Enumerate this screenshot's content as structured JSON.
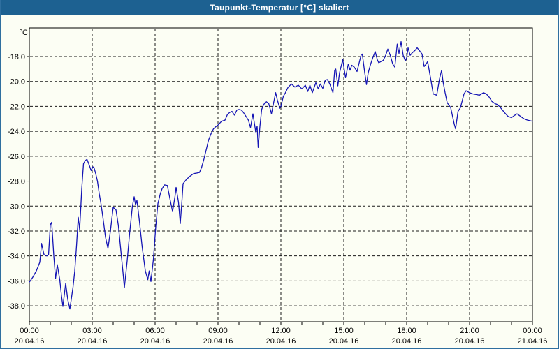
{
  "window": {
    "title": "Taupunkt-Temperatur [°C] skaliert"
  },
  "colors": {
    "titlebar_bg": "#1d6191",
    "titlebar_text": "#ffffff",
    "window_border": "#2f6f9f",
    "background": "#fcfef4",
    "grid": "#1a1a1a",
    "series": "#1414b4"
  },
  "chart_data": {
    "type": "line",
    "title": "Taupunkt-Temperatur [°C] skaliert",
    "xlabel": "",
    "ylabel": "°C",
    "grid": true,
    "legend_position": "none",
    "ylim": [
      -39.3,
      -15.7
    ],
    "xlim_hours": [
      0,
      24
    ],
    "y_tick_values": [
      -18,
      -20,
      -22,
      -24,
      -26,
      -28,
      -30,
      -32,
      -34,
      -36,
      -38
    ],
    "y_tick_labels": [
      "-18,0",
      "-20,0",
      "-22,0",
      "-24,0",
      "-26,0",
      "-28,0",
      "-30,0",
      "-32,0",
      "-34,0",
      "-36,0",
      "-38,0"
    ],
    "x_ticks": [
      {
        "hours": 0,
        "time": "00:00",
        "date": "20.04.16"
      },
      {
        "hours": 3,
        "time": "03:00",
        "date": "20.04.16"
      },
      {
        "hours": 6,
        "time": "06:00",
        "date": "20.04.16"
      },
      {
        "hours": 9,
        "time": "09:00",
        "date": "20.04.16"
      },
      {
        "hours": 12,
        "time": "12:00",
        "date": "20.04.16"
      },
      {
        "hours": 15,
        "time": "15:00",
        "date": "20.04.16"
      },
      {
        "hours": 18,
        "time": "18:00",
        "date": "20.04.16"
      },
      {
        "hours": 21,
        "time": "21:00",
        "date": "20.04.16"
      },
      {
        "hours": 24,
        "time": "00:00",
        "date": "21.04.16"
      }
    ],
    "series": [
      {
        "name": "Taupunkt-Temperatur",
        "color": "#1414b4",
        "points_format": "[minutes_since_00:00, temp_celsius]",
        "points": [
          [
            0,
            -36.1
          ],
          [
            10,
            -35.7
          ],
          [
            20,
            -35.2
          ],
          [
            30,
            -34.5
          ],
          [
            35,
            -33.0
          ],
          [
            42,
            -33.9
          ],
          [
            50,
            -34.0
          ],
          [
            55,
            -33.9
          ],
          [
            60,
            -31.5
          ],
          [
            64,
            -31.3
          ],
          [
            70,
            -34.0
          ],
          [
            75,
            -35.8
          ],
          [
            80,
            -34.7
          ],
          [
            87,
            -35.9
          ],
          [
            92,
            -37.2
          ],
          [
            96,
            -38.05
          ],
          [
            104,
            -36.2
          ],
          [
            110,
            -37.5
          ],
          [
            116,
            -38.25
          ],
          [
            125,
            -36.5
          ],
          [
            130,
            -35.2
          ],
          [
            135,
            -33.2
          ],
          [
            140,
            -30.9
          ],
          [
            144,
            -31.9
          ],
          [
            150,
            -28.6
          ],
          [
            155,
            -26.6
          ],
          [
            160,
            -26.35
          ],
          [
            165,
            -26.25
          ],
          [
            170,
            -26.6
          ],
          [
            177,
            -27.15
          ],
          [
            182,
            -26.85
          ],
          [
            185,
            -26.9
          ],
          [
            190,
            -27.4
          ],
          [
            195,
            -28.0
          ],
          [
            200,
            -29.0
          ],
          [
            205,
            -29.8
          ],
          [
            210,
            -30.8
          ],
          [
            218,
            -32.5
          ],
          [
            225,
            -33.4
          ],
          [
            232,
            -32.0
          ],
          [
            240,
            -30.1
          ],
          [
            248,
            -30.3
          ],
          [
            255,
            -31.6
          ],
          [
            262,
            -33.6
          ],
          [
            268,
            -35.3
          ],
          [
            272,
            -36.55
          ],
          [
            280,
            -34.4
          ],
          [
            287,
            -32.2
          ],
          [
            295,
            -30.0
          ],
          [
            300,
            -29.25
          ],
          [
            304,
            -29.9
          ],
          [
            308,
            -29.55
          ],
          [
            315,
            -31.2
          ],
          [
            323,
            -33.3
          ],
          [
            332,
            -35.2
          ],
          [
            339,
            -35.9
          ],
          [
            343,
            -35.2
          ],
          [
            348,
            -36.05
          ],
          [
            355,
            -34.3
          ],
          [
            362,
            -31.6
          ],
          [
            368,
            -29.8
          ],
          [
            375,
            -29.0
          ],
          [
            380,
            -28.6
          ],
          [
            387,
            -28.3
          ],
          [
            395,
            -28.35
          ],
          [
            403,
            -29.5
          ],
          [
            410,
            -30.45
          ],
          [
            417,
            -29.2
          ],
          [
            420,
            -28.5
          ],
          [
            427,
            -29.7
          ],
          [
            432,
            -31.4
          ],
          [
            437,
            -29.5
          ],
          [
            440,
            -28.2
          ],
          [
            450,
            -27.85
          ],
          [
            460,
            -27.6
          ],
          [
            470,
            -27.4
          ],
          [
            480,
            -27.35
          ],
          [
            487,
            -27.3
          ],
          [
            493,
            -26.9
          ],
          [
            500,
            -26.2
          ],
          [
            507,
            -25.4
          ],
          [
            513,
            -24.7
          ],
          [
            520,
            -24.2
          ],
          [
            527,
            -23.8
          ],
          [
            533,
            -23.65
          ],
          [
            540,
            -23.5
          ],
          [
            550,
            -23.2
          ],
          [
            560,
            -23.1
          ],
          [
            567,
            -22.65
          ],
          [
            573,
            -22.5
          ],
          [
            580,
            -22.4
          ],
          [
            587,
            -22.7
          ],
          [
            594,
            -22.3
          ],
          [
            600,
            -22.25
          ],
          [
            607,
            -22.3
          ],
          [
            613,
            -22.5
          ],
          [
            620,
            -22.8
          ],
          [
            627,
            -23.1
          ],
          [
            633,
            -23.7
          ],
          [
            640,
            -22.6
          ],
          [
            648,
            -24.05
          ],
          [
            652,
            -23.6
          ],
          [
            655,
            -25.3
          ],
          [
            660,
            -23.6
          ],
          [
            665,
            -22.25
          ],
          [
            670,
            -21.9
          ],
          [
            677,
            -21.6
          ],
          [
            685,
            -21.75
          ],
          [
            693,
            -22.6
          ],
          [
            700,
            -21.6
          ],
          [
            705,
            -20.9
          ],
          [
            710,
            -21.5
          ],
          [
            717,
            -22.15
          ],
          [
            720,
            -22.0
          ],
          [
            727,
            -21.2
          ],
          [
            733,
            -20.9
          ],
          [
            740,
            -20.5
          ],
          [
            750,
            -20.2
          ],
          [
            760,
            -20.45
          ],
          [
            770,
            -20.3
          ],
          [
            780,
            -20.6
          ],
          [
            790,
            -20.3
          ],
          [
            797,
            -20.8
          ],
          [
            803,
            -20.3
          ],
          [
            810,
            -20.9
          ],
          [
            820,
            -20.1
          ],
          [
            827,
            -20.6
          ],
          [
            833,
            -20.2
          ],
          [
            840,
            -20.55
          ],
          [
            847,
            -19.9
          ],
          [
            853,
            -19.85
          ],
          [
            860,
            -20.2
          ],
          [
            869,
            -20.9
          ],
          [
            874,
            -19.1
          ],
          [
            877,
            -19.0
          ],
          [
            883,
            -20.35
          ],
          [
            888,
            -19.3
          ],
          [
            897,
            -18.25
          ],
          [
            905,
            -19.7
          ],
          [
            913,
            -18.6
          ],
          [
            918,
            -19.1
          ],
          [
            923,
            -18.7
          ],
          [
            930,
            -18.85
          ],
          [
            938,
            -19.2
          ],
          [
            945,
            -18.4
          ],
          [
            950,
            -17.85
          ],
          [
            953,
            -17.8
          ],
          [
            960,
            -19.3
          ],
          [
            965,
            -20.25
          ],
          [
            970,
            -19.3
          ],
          [
            977,
            -18.6
          ],
          [
            983,
            -18.1
          ],
          [
            990,
            -17.6
          ],
          [
            996,
            -18.25
          ],
          [
            1000,
            -18.5
          ],
          [
            1007,
            -18.4
          ],
          [
            1013,
            -18.3
          ],
          [
            1020,
            -17.9
          ],
          [
            1026,
            -17.4
          ],
          [
            1033,
            -17.9
          ],
          [
            1040,
            -18.6
          ],
          [
            1046,
            -18.85
          ],
          [
            1053,
            -17.0
          ],
          [
            1058,
            -17.75
          ],
          [
            1064,
            -16.8
          ],
          [
            1070,
            -17.9
          ],
          [
            1076,
            -18.35
          ],
          [
            1080,
            -18.1
          ],
          [
            1084,
            -17.3
          ],
          [
            1090,
            -17.9
          ],
          [
            1096,
            -17.7
          ],
          [
            1104,
            -17.5
          ],
          [
            1110,
            -17.3
          ],
          [
            1116,
            -17.5
          ],
          [
            1124,
            -17.8
          ],
          [
            1130,
            -18.8
          ],
          [
            1136,
            -18.6
          ],
          [
            1140,
            -18.4
          ],
          [
            1150,
            -20.0
          ],
          [
            1156,
            -21.0
          ],
          [
            1166,
            -21.1
          ],
          [
            1174,
            -19.8
          ],
          [
            1180,
            -19.1
          ],
          [
            1184,
            -20.0
          ],
          [
            1190,
            -20.9
          ],
          [
            1196,
            -21.7
          ],
          [
            1206,
            -22.1
          ],
          [
            1216,
            -23.4
          ],
          [
            1220,
            -23.8
          ],
          [
            1227,
            -22.4
          ],
          [
            1234,
            -22.1
          ],
          [
            1244,
            -21.0
          ],
          [
            1250,
            -20.75
          ],
          [
            1260,
            -20.9
          ],
          [
            1270,
            -21.0
          ],
          [
            1280,
            -21.05
          ],
          [
            1288,
            -21.1
          ],
          [
            1300,
            -20.9
          ],
          [
            1308,
            -21.0
          ],
          [
            1316,
            -21.25
          ],
          [
            1324,
            -21.6
          ],
          [
            1334,
            -21.8
          ],
          [
            1340,
            -21.85
          ],
          [
            1350,
            -22.15
          ],
          [
            1360,
            -22.5
          ],
          [
            1370,
            -22.8
          ],
          [
            1380,
            -22.9
          ],
          [
            1390,
            -22.7
          ],
          [
            1396,
            -22.6
          ],
          [
            1406,
            -22.8
          ],
          [
            1416,
            -23.0
          ],
          [
            1426,
            -23.1
          ],
          [
            1440,
            -23.2
          ]
        ]
      }
    ]
  }
}
